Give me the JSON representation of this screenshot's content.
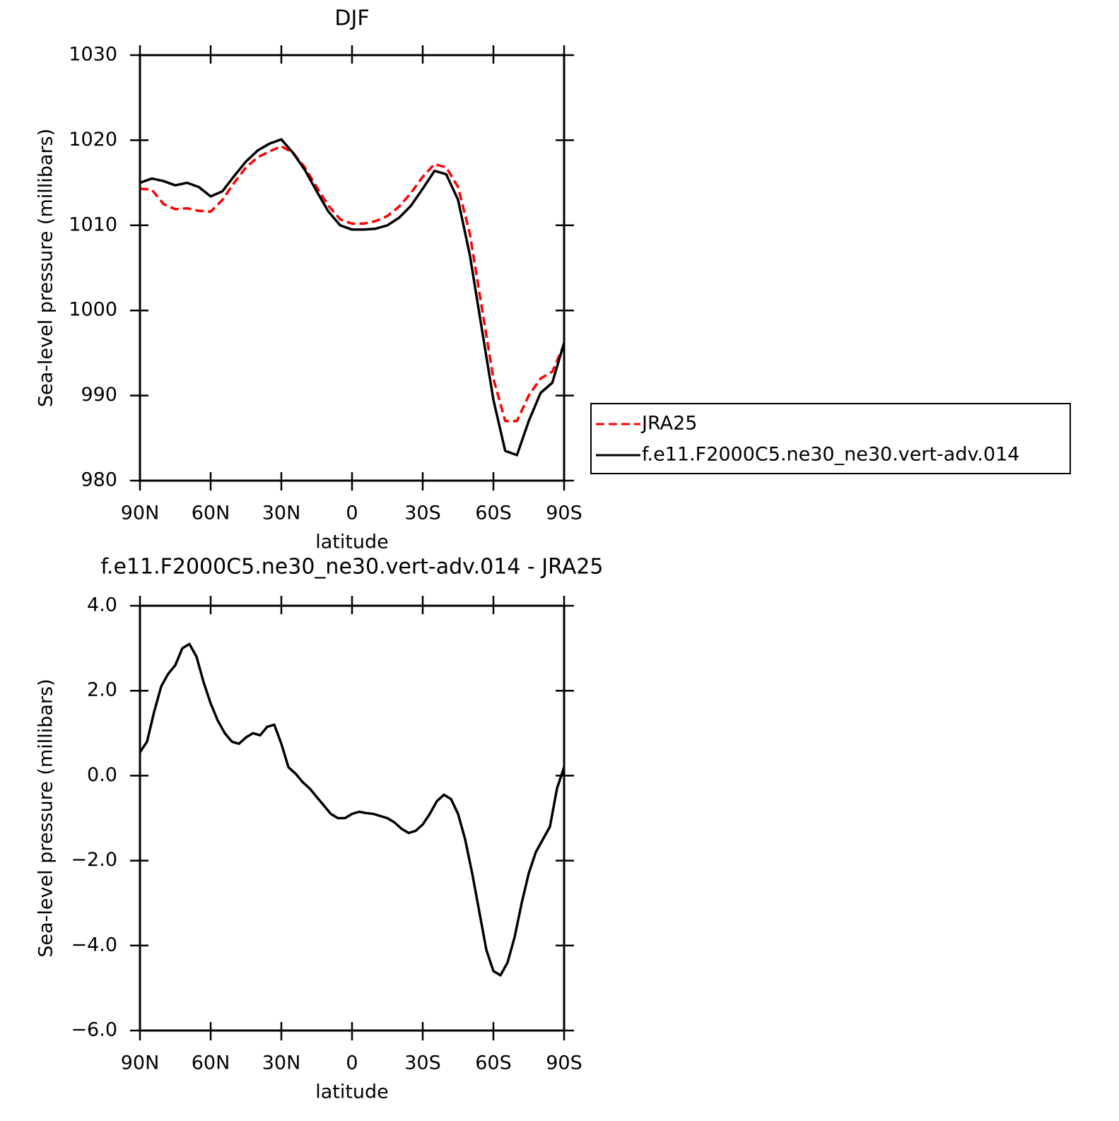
{
  "chart_data": [
    {
      "type": "line",
      "title": "DJF",
      "xlabel": "latitude",
      "ylabel": "Sea-level pressure (millibars)",
      "x": [
        90,
        85,
        80,
        75,
        70,
        65,
        60,
        55,
        50,
        45,
        40,
        35,
        30,
        25,
        20,
        15,
        10,
        5,
        0,
        -5,
        -10,
        -15,
        -20,
        -25,
        -30,
        -35,
        -40,
        -45,
        -50,
        -55,
        -60,
        -65,
        -70,
        -75,
        -80,
        -85,
        -90
      ],
      "series": [
        {
          "name": "JRA25",
          "color": "#ff0000",
          "dash": true,
          "values": [
            1014.3,
            1014.2,
            1012.5,
            1011.9,
            1012.0,
            1011.7,
            1011.6,
            1013.0,
            1015.0,
            1016.8,
            1018.0,
            1018.7,
            1019.3,
            1018.5,
            1016.8,
            1014.5,
            1012.3,
            1010.7,
            1010.2,
            1010.2,
            1010.5,
            1011.1,
            1012.2,
            1013.8,
            1015.7,
            1017.2,
            1016.8,
            1014.5,
            1009.0,
            1000.5,
            992.0,
            987.0,
            987.0,
            990.0,
            992.0,
            992.8,
            996.0
          ]
        },
        {
          "name": "f.e11.F2000C5.ne30_ne30.vert-adv.014",
          "color": "#000000",
          "dash": false,
          "values": [
            1015.0,
            1015.5,
            1015.2,
            1014.7,
            1015.0,
            1014.5,
            1013.4,
            1014.0,
            1015.8,
            1017.5,
            1018.8,
            1019.6,
            1020.1,
            1018.5,
            1016.5,
            1014.0,
            1011.6,
            1010.0,
            1009.5,
            1009.5,
            1009.6,
            1010.0,
            1010.9,
            1012.3,
            1014.3,
            1016.4,
            1016.0,
            1013.0,
            1006.5,
            998.0,
            989.5,
            983.5,
            983.0,
            987.0,
            990.3,
            991.5,
            996.2
          ]
        }
      ],
      "xlim": [
        90,
        -90
      ],
      "xticks": [
        {
          "value": 90,
          "label": "90N"
        },
        {
          "value": 60,
          "label": "60N"
        },
        {
          "value": 30,
          "label": "30N"
        },
        0,
        {
          "value": -30,
          "label": "30S"
        },
        {
          "value": -60,
          "label": "60S"
        },
        {
          "value": -90,
          "label": "90S"
        }
      ],
      "ylim": [
        980,
        1030
      ],
      "yticks": [
        980,
        990,
        1000,
        1010,
        1020,
        1030
      ]
    },
    {
      "type": "line",
      "title": "f.e11.F2000C5.ne30_ne30.vert-adv.014 - JRA25",
      "xlabel": "latitude",
      "ylabel": "Sea-level pressure (millibars)",
      "x": [
        90,
        87,
        84,
        81,
        78,
        75,
        72,
        69,
        66,
        63,
        60,
        57,
        54,
        51,
        48,
        45,
        42,
        39,
        36,
        33,
        30,
        27,
        24,
        21,
        18,
        15,
        12,
        9,
        6,
        3,
        0,
        -3,
        -6,
        -9,
        -12,
        -15,
        -18,
        -21,
        -24,
        -27,
        -30,
        -33,
        -36,
        -39,
        -42,
        -45,
        -48,
        -51,
        -54,
        -57,
        -60,
        -63,
        -66,
        -69,
        -72,
        -75,
        -78,
        -81,
        -84,
        -87,
        -90
      ],
      "color": "#000000",
      "values": [
        0.55,
        0.8,
        1.5,
        2.1,
        2.4,
        2.6,
        3.0,
        3.1,
        2.8,
        2.2,
        1.7,
        1.3,
        1.0,
        0.8,
        0.75,
        0.9,
        1.0,
        0.95,
        1.15,
        1.2,
        0.75,
        0.2,
        0.05,
        -0.15,
        -0.3,
        -0.5,
        -0.7,
        -0.9,
        -1.0,
        -1.0,
        -0.9,
        -0.85,
        -0.88,
        -0.9,
        -0.95,
        -1.0,
        -1.1,
        -1.25,
        -1.35,
        -1.3,
        -1.15,
        -0.9,
        -0.6,
        -0.45,
        -0.55,
        -0.9,
        -1.5,
        -2.3,
        -3.2,
        -4.1,
        -4.6,
        -4.7,
        -4.4,
        -3.8,
        -3.0,
        -2.3,
        -1.8,
        -1.5,
        -1.2,
        -0.3,
        0.2
      ],
      "xlim": [
        90,
        -90
      ],
      "xticks": [
        {
          "value": 90,
          "label": "90N"
        },
        {
          "value": 60,
          "label": "60N"
        },
        {
          "value": 30,
          "label": "30N"
        },
        0,
        {
          "value": -30,
          "label": "30S"
        },
        {
          "value": -60,
          "label": "60S"
        },
        {
          "value": -90,
          "label": "90S"
        }
      ],
      "ylim": [
        -6,
        4
      ],
      "yticks": [
        {
          "value": -6,
          "label": "−6.0"
        },
        {
          "value": -4,
          "label": "−4.0"
        },
        {
          "value": -2,
          "label": "−2.0"
        },
        {
          "value": 0,
          "label": "0.0"
        },
        {
          "value": 2,
          "label": "2.0"
        },
        {
          "value": 4,
          "label": "4.0"
        }
      ]
    }
  ]
}
